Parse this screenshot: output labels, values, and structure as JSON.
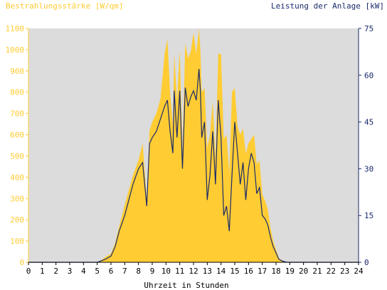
{
  "chart_data": {
    "type": "area",
    "title_left": "Bestrahlungsstärke [W/qm]",
    "title_right": "Leistung der Anlage [kW]",
    "xlabel": "Uhrzeit in Stunden",
    "x_ticks": [
      0,
      1,
      2,
      3,
      4,
      5,
      6,
      7,
      8,
      9,
      10,
      11,
      12,
      13,
      14,
      15,
      16,
      17,
      18,
      19,
      20,
      21,
      22,
      23,
      24
    ],
    "y_left_ticks": [
      0,
      100,
      200,
      300,
      400,
      500,
      600,
      700,
      800,
      900,
      1000,
      1100
    ],
    "y_right_ticks": [
      0,
      15,
      30,
      45,
      60,
      75
    ],
    "xlim": [
      0,
      24
    ],
    "ylim_left": [
      0,
      1100
    ],
    "ylim_right": [
      0,
      75
    ],
    "colors": {
      "irradiance_fill": "#ffcc33",
      "power_line": "#1a2a6a",
      "plot_bg": "#dcdcdc",
      "left_axis": "#ffcc33",
      "right_axis": "#1a2a6a"
    },
    "series": [
      {
        "axis": "left",
        "x": [
          0,
          5.0,
          5.3,
          5.6,
          6.0,
          6.3,
          6.6,
          7.0,
          7.3,
          7.6,
          8.0,
          8.3,
          8.6,
          8.8,
          9.0,
          9.3,
          9.6,
          9.9,
          10.1,
          10.3,
          10.5,
          10.6,
          10.8,
          11.0,
          11.2,
          11.4,
          11.6,
          11.8,
          12.0,
          12.2,
          12.4,
          12.5,
          12.6,
          12.8,
          13.0,
          13.2,
          13.4,
          13.6,
          13.8,
          14.0,
          14.2,
          14.4,
          14.6,
          14.8,
          15.0,
          15.2,
          15.4,
          15.6,
          15.8,
          16.0,
          16.2,
          16.4,
          16.6,
          16.8,
          17.0,
          17.2,
          17.4,
          17.6,
          17.8,
          18.0,
          18.2,
          18.4,
          18.6,
          18.8,
          19.0,
          19.3,
          19.6,
          20.0,
          24
        ],
        "values": [
          0,
          0,
          10,
          25,
          40,
          90,
          170,
          270,
          340,
          410,
          480,
          560,
          300,
          620,
          660,
          700,
          770,
          980,
          1050,
          800,
          640,
          980,
          760,
          1000,
          520,
          1030,
          960,
          990,
          1080,
          980,
          1100,
          1000,
          800,
          820,
          540,
          600,
          760,
          480,
          980,
          980,
          580,
          600,
          420,
          800,
          820,
          640,
          600,
          630,
          510,
          560,
          580,
          600,
          460,
          480,
          320,
          290,
          250,
          160,
          100,
          60,
          20,
          10,
          5,
          0,
          0,
          0,
          0,
          0,
          0
        ]
      },
      {
        "axis": "right",
        "x": [
          0,
          5.0,
          5.3,
          5.6,
          6.0,
          6.3,
          6.6,
          7.0,
          7.3,
          7.6,
          8.0,
          8.3,
          8.6,
          8.8,
          9.0,
          9.3,
          9.6,
          9.9,
          10.1,
          10.3,
          10.5,
          10.6,
          10.8,
          11.0,
          11.2,
          11.4,
          11.6,
          11.8,
          12.0,
          12.2,
          12.4,
          12.5,
          12.6,
          12.8,
          13.0,
          13.2,
          13.4,
          13.6,
          13.8,
          14.0,
          14.2,
          14.4,
          14.6,
          14.8,
          15.0,
          15.2,
          15.4,
          15.6,
          15.8,
          16.0,
          16.2,
          16.4,
          16.6,
          16.8,
          17.0,
          17.2,
          17.4,
          17.6,
          17.8,
          18.0,
          18.2,
          18.4,
          18.6,
          18.8,
          19.0,
          19.3,
          19.6,
          20.0,
          24
        ],
        "values": [
          0,
          0,
          0.5,
          1,
          2,
          5,
          10,
          15,
          20,
          25,
          30,
          32,
          18,
          38,
          40,
          42,
          46,
          50,
          52,
          42,
          35,
          55,
          40,
          55,
          30,
          56,
          50,
          53,
          55,
          52,
          62,
          55,
          40,
          45,
          20,
          28,
          42,
          25,
          52,
          40,
          15,
          18,
          10,
          28,
          45,
          35,
          25,
          32,
          20,
          30,
          35,
          32,
          22,
          24,
          15,
          14,
          12,
          8,
          5,
          3,
          1,
          0.5,
          0.2,
          0,
          0,
          0,
          0,
          0,
          0
        ]
      }
    ]
  }
}
